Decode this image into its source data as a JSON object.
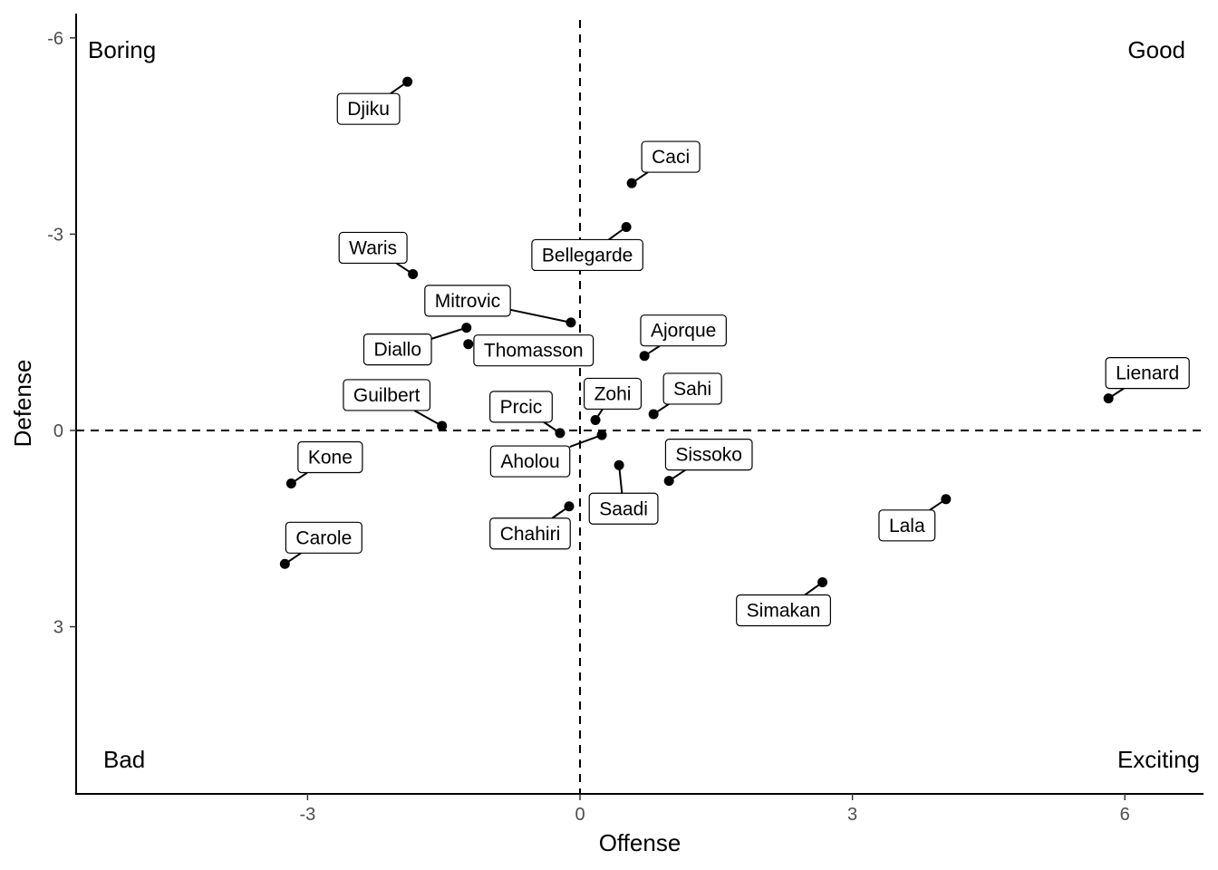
{
  "chart_data": {
    "type": "scatter",
    "xlabel": "Offense",
    "ylabel": "Defense",
    "x_ticks": [
      -3,
      0,
      3,
      6
    ],
    "y_ticks": [
      -6,
      -3,
      0,
      3
    ],
    "xlim": [
      -5.55,
      6.88
    ],
    "ylim": [
      5.55,
      -6.35
    ],
    "y_axis_reversed": true,
    "grid": false,
    "reference_lines": {
      "x": 0,
      "y": 0
    },
    "quadrant_labels": {
      "top_left": "Boring",
      "top_right": "Good",
      "bottom_left": "Bad",
      "bottom_right": "Exciting"
    },
    "points": [
      {
        "label": "Djiku",
        "x": -1.9,
        "y": -5.33
      },
      {
        "label": "Caci",
        "x": 0.57,
        "y": -3.78
      },
      {
        "label": "Bellegarde",
        "x": 0.51,
        "y": -3.11
      },
      {
        "label": "Waris",
        "x": -1.84,
        "y": -2.39
      },
      {
        "label": "Mitrovic",
        "x": -0.1,
        "y": -1.65
      },
      {
        "label": "Diallo",
        "x": -1.25,
        "y": -1.57
      },
      {
        "label": "Thomasson",
        "x": -1.23,
        "y": -1.32
      },
      {
        "label": "Ajorque",
        "x": 0.71,
        "y": -1.14
      },
      {
        "label": "Lienard",
        "x": 5.82,
        "y": -0.49
      },
      {
        "label": "Sahi",
        "x": 0.81,
        "y": -0.25
      },
      {
        "label": "Zohi",
        "x": 0.17,
        "y": -0.16
      },
      {
        "label": "Guilbert",
        "x": -1.52,
        "y": -0.07
      },
      {
        "label": "Prcic",
        "x": -0.22,
        "y": 0.04
      },
      {
        "label": "Aholou",
        "x": 0.24,
        "y": 0.07
      },
      {
        "label": "Saadi",
        "x": 0.43,
        "y": 0.53
      },
      {
        "label": "Sissoko",
        "x": 0.98,
        "y": 0.77
      },
      {
        "label": "Kone",
        "x": -3.18,
        "y": 0.81
      },
      {
        "label": "Lala",
        "x": 4.03,
        "y": 1.05
      },
      {
        "label": "Chahiri",
        "x": -0.12,
        "y": 1.16
      },
      {
        "label": "Carole",
        "x": -3.25,
        "y": 2.04
      },
      {
        "label": "Simakan",
        "x": 2.67,
        "y": 2.32
      }
    ]
  }
}
